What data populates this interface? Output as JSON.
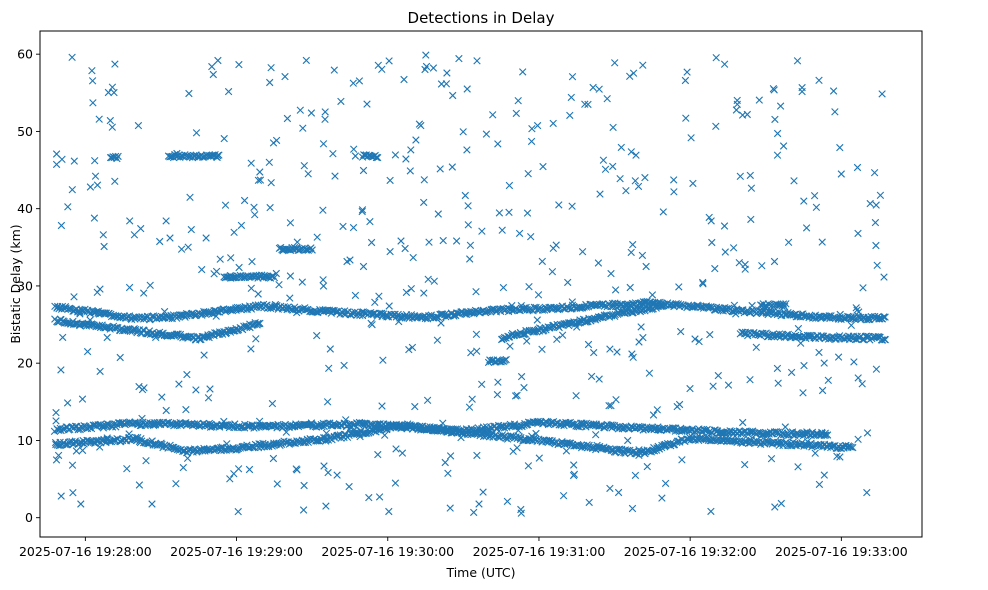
{
  "chart_data": {
    "type": "scatter",
    "title": "Detections in Delay",
    "xlabel": "Time (UTC)",
    "ylabel": "Bistatic Delay (km)",
    "marker": "x",
    "color": "#1f77b4",
    "xlim_seconds": [
      -18,
      332
    ],
    "ylim": [
      -2.5,
      63
    ],
    "xticks": [
      {
        "t": 0,
        "label": "2025-07-16 19:28:00"
      },
      {
        "t": 60,
        "label": "2025-07-16 19:29:00"
      },
      {
        "t": 120,
        "label": "2025-07-16 19:30:00"
      },
      {
        "t": 180,
        "label": "2025-07-16 19:31:00"
      },
      {
        "t": 240,
        "label": "2025-07-16 19:32:00"
      },
      {
        "t": 300,
        "label": "2025-07-16 19:33:00"
      }
    ],
    "yticks": [
      {
        "v": 0,
        "label": "0"
      },
      {
        "v": 10,
        "label": "10"
      },
      {
        "v": 20,
        "label": "20"
      },
      {
        "v": 30,
        "label": "30"
      },
      {
        "v": 40,
        "label": "40"
      },
      {
        "v": 50,
        "label": "50"
      },
      {
        "v": 60,
        "label": "60"
      }
    ],
    "time_range_seconds": [
      -12,
      318
    ],
    "tracks": [
      {
        "name": "track-a",
        "points": [
          [
            -12,
            11.4
          ],
          [
            20,
            12.2
          ],
          [
            70,
            11.8
          ],
          [
            110,
            12.1
          ],
          [
            150,
            11.2
          ],
          [
            180,
            12.3
          ],
          [
            220,
            11.6
          ],
          [
            260,
            11.0
          ],
          [
            295,
            10.8
          ]
        ]
      },
      {
        "name": "track-b",
        "points": [
          [
            -12,
            9.5
          ],
          [
            20,
            10.2
          ],
          [
            40,
            8.6
          ],
          [
            60,
            9.0
          ],
          [
            100,
            10.4
          ],
          [
            125,
            12.0
          ],
          [
            150,
            11.0
          ],
          [
            180,
            10.0
          ],
          [
            220,
            8.3
          ],
          [
            240,
            10.3
          ],
          [
            265,
            9.8
          ],
          [
            305,
            9.1
          ]
        ]
      },
      {
        "name": "track-c",
        "points": [
          [
            -12,
            27.3
          ],
          [
            20,
            25.8
          ],
          [
            35,
            26.0
          ],
          [
            70,
            27.4
          ],
          [
            100,
            26.6
          ],
          [
            135,
            25.9
          ],
          [
            160,
            26.8
          ],
          [
            190,
            27.2
          ],
          [
            225,
            27.8
          ],
          [
            290,
            26.0
          ],
          [
            318,
            25.8
          ]
        ]
      },
      {
        "name": "track-d",
        "points": [
          [
            -12,
            25.5
          ],
          [
            20,
            24.2
          ],
          [
            45,
            23.2
          ],
          [
            70,
            25.2
          ]
        ]
      },
      {
        "name": "track-e",
        "points": [
          [
            165,
            23.3
          ],
          [
            210,
            26.3
          ],
          [
            230,
            27.5
          ]
        ]
      },
      {
        "name": "track-f",
        "points": [
          [
            260,
            23.8
          ],
          [
            290,
            23.4
          ],
          [
            318,
            23.2
          ]
        ]
      }
    ],
    "clusters": [
      {
        "t0": 10,
        "t1": 13,
        "v": 46.6
      },
      {
        "t0": 33,
        "t1": 53,
        "v": 46.8
      },
      {
        "t0": 55,
        "t1": 75,
        "v": 31.2
      },
      {
        "t0": 77,
        "t1": 90,
        "v": 34.8
      },
      {
        "t0": 110,
        "t1": 116,
        "v": 46.8
      },
      {
        "t0": 160,
        "t1": 167,
        "v": 20.3
      },
      {
        "t0": 268,
        "t1": 278,
        "v": 27.5
      }
    ],
    "noise_count": 560,
    "noise_seed": 7
  }
}
